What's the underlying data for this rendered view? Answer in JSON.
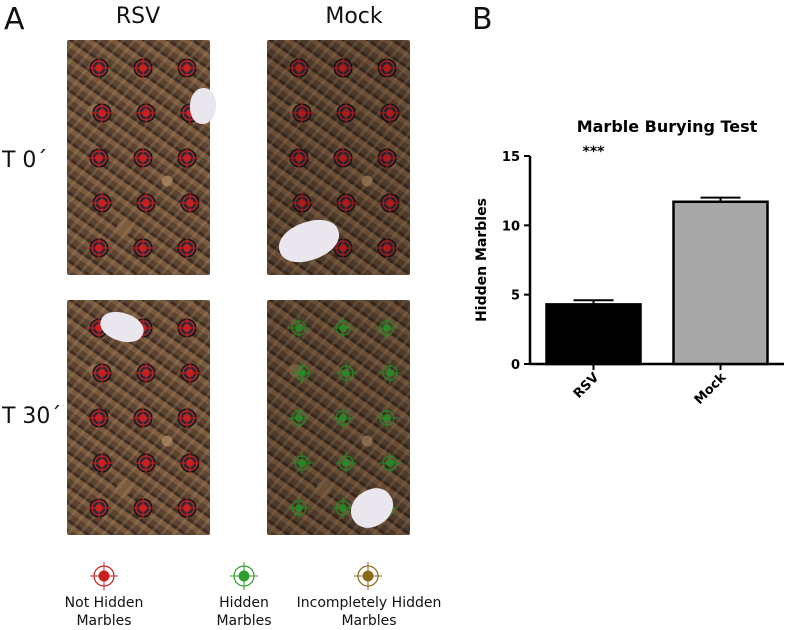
{
  "panel_labels": {
    "a": "A",
    "b": "B"
  },
  "photo_panel": {
    "columns": [
      "RSV",
      "Mock"
    ],
    "rows": [
      "T 0´",
      "T 30´"
    ]
  },
  "legend": [
    {
      "label_line1": "Not Hidden",
      "label_line2": "Marbles",
      "color": "#cc1f1f",
      "icon": "red-target-icon"
    },
    {
      "label_line1": "Hidden",
      "label_line2": "Marbles",
      "color": "#2e9e2e",
      "icon": "green-target-icon"
    },
    {
      "label_line1": "Incompletely Hidden",
      "label_line2": "Marbles",
      "color": "#8a6a1a",
      "icon": "brown-target-icon"
    }
  ],
  "chart_data": {
    "type": "bar",
    "title": "Marble Burying Test",
    "ylabel": "Hidden Marbles",
    "xlabel": "",
    "categories": [
      "RSV",
      "Mock"
    ],
    "values": [
      4.3,
      11.7
    ],
    "errors": [
      0.3,
      0.3
    ],
    "bar_colors": [
      "#000000",
      "#a8a8a8"
    ],
    "ylim": [
      0,
      15
    ],
    "yticks": [
      "0",
      "5",
      "10",
      "15"
    ],
    "significance": "***",
    "grid": false
  }
}
